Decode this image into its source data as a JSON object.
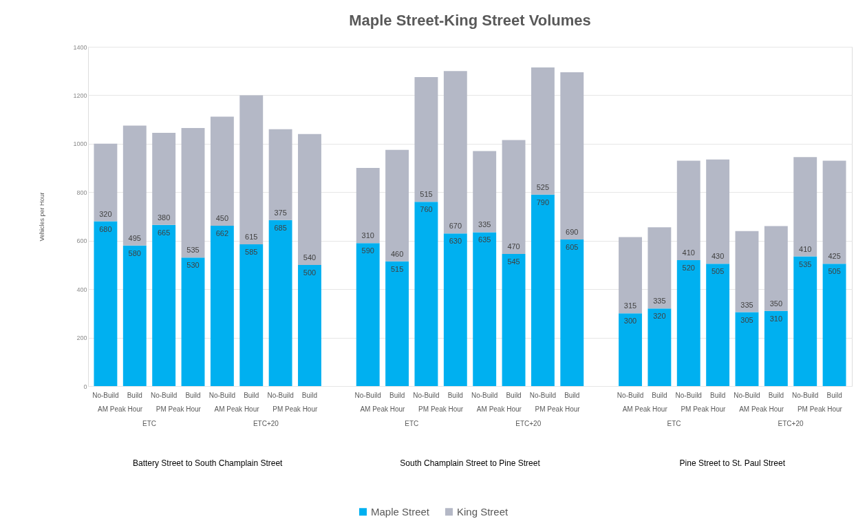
{
  "chart_data": {
    "type": "bar",
    "title": "Maple Street-King Street Volumes",
    "ylabel": "Vehicles per Hour",
    "categories": [
      "No-Build",
      "Build",
      "No-Build",
      "Build",
      "No-Build",
      "Build",
      "No-Build",
      "Build",
      "No-Build",
      "Build",
      "No-Build",
      "Build",
      "No-Build",
      "Build",
      "No-Build",
      "Build",
      "No-Build",
      "Build",
      "No-Build",
      "Build",
      "No-Build",
      "Build",
      "No-Build",
      "Build"
    ],
    "series": [
      {
        "name": "Maple Street",
        "color": "#00b0f0",
        "values": [
          680,
          580,
          665,
          530,
          662,
          585,
          685,
          500,
          590,
          515,
          760,
          630,
          635,
          545,
          790,
          605,
          300,
          320,
          520,
          505,
          305,
          310,
          535,
          505
        ]
      },
      {
        "name": "King Street",
        "color": "#b4b8c6",
        "values": [
          320,
          495,
          380,
          535,
          450,
          615,
          375,
          540,
          310,
          460,
          515,
          670,
          335,
          470,
          525,
          690,
          315,
          335,
          410,
          430,
          335,
          350,
          410,
          425
        ]
      }
    ],
    "stacked": true,
    "data_labels": true,
    "ylim": [
      0,
      1400
    ],
    "yticks": [
      0,
      200,
      400,
      600,
      800,
      1000,
      1200,
      1400
    ],
    "grid": "y",
    "legend": "bottom",
    "annotations": [
      "AM Peak Hour",
      "PM Peak Hour",
      "AM Peak Hour",
      "PM Peak Hour",
      "AM Peak Hour",
      "PM Peak Hour",
      "AM Peak Hour",
      "PM Peak Hour",
      "AM Peak Hour",
      "PM Peak Hour",
      "AM Peak Hour",
      "PM Peak Hour",
      "ETC",
      "ETC+20",
      "ETC",
      "ETC+20",
      "ETC",
      "ETC+20",
      "Battery Street to South Champlain Street",
      "South Champlain Street to Pine Street",
      "Pine Street to St. Paul Street"
    ]
  }
}
